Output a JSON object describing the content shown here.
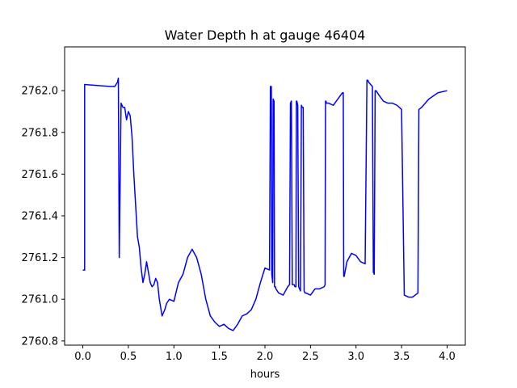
{
  "chart_data": {
    "type": "line",
    "title": "Water Depth h at gauge 46404",
    "xlabel": "hours",
    "ylabel": "",
    "xlim": [
      -0.2,
      4.2
    ],
    "ylim": [
      2760.78,
      2762.21
    ],
    "xticks": [
      0.0,
      0.5,
      1.0,
      1.5,
      2.0,
      2.5,
      3.0,
      3.5,
      4.0
    ],
    "xtick_labels": [
      "0.0",
      "0.5",
      "1.0",
      "1.5",
      "2.0",
      "2.5",
      "3.0",
      "3.5",
      "4.0"
    ],
    "yticks": [
      2760.8,
      2761.0,
      2761.2,
      2761.4,
      2761.6,
      2761.8,
      2762.0
    ],
    "ytick_labels": [
      "2760.8",
      "2761.0",
      "2761.2",
      "2761.4",
      "2761.6",
      "2761.8",
      "2762.0"
    ],
    "grid": false,
    "legend": "none",
    "series": [
      {
        "color": "#0000ff",
        "x": [
          0.0,
          0.02,
          0.02,
          0.3,
          0.35,
          0.38,
          0.39,
          0.4,
          0.42,
          0.44,
          0.46,
          0.48,
          0.5,
          0.52,
          0.54,
          0.56,
          0.6,
          0.62,
          0.64,
          0.66,
          0.68,
          0.7,
          0.74,
          0.76,
          0.78,
          0.8,
          0.82,
          0.84,
          0.87,
          0.9,
          0.92,
          0.95,
          1.0,
          1.05,
          1.1,
          1.15,
          1.2,
          1.25,
          1.3,
          1.35,
          1.4,
          1.45,
          1.5,
          1.55,
          1.6,
          1.65,
          1.7,
          1.75,
          1.8,
          1.85,
          1.9,
          1.95,
          2.0,
          2.05,
          2.06,
          2.07,
          2.075,
          2.085,
          2.09,
          2.1,
          2.105,
          2.115,
          2.12,
          2.15,
          2.2,
          2.25,
          2.27,
          2.28,
          2.29,
          2.3,
          2.31,
          2.32,
          2.33,
          2.34,
          2.345,
          2.35,
          2.36,
          2.37,
          2.38,
          2.39,
          2.4,
          2.41,
          2.42,
          2.43,
          2.44,
          2.45,
          2.5,
          2.55,
          2.6,
          2.65,
          2.66,
          2.665,
          2.67,
          2.675,
          2.7,
          2.75,
          2.8,
          2.85,
          2.86,
          2.865,
          2.87,
          2.9,
          2.95,
          3.0,
          3.05,
          3.1,
          3.12,
          3.13,
          3.14,
          3.16,
          3.18,
          3.19,
          3.2,
          3.21,
          3.22,
          3.25,
          3.3,
          3.35,
          3.4,
          3.45,
          3.5,
          3.53,
          3.53,
          3.58,
          3.62,
          3.65,
          3.68,
          3.69,
          3.72,
          3.8,
          3.9,
          4.0
        ],
        "y": [
          2761.14,
          2761.14,
          2762.03,
          2762.02,
          2762.02,
          2762.04,
          2762.06,
          2761.2,
          2761.94,
          2761.92,
          2761.92,
          2761.86,
          2761.9,
          2761.88,
          2761.78,
          2761.6,
          2761.3,
          2761.25,
          2761.15,
          2761.08,
          2761.12,
          2761.18,
          2761.08,
          2761.06,
          2761.07,
          2761.1,
          2761.08,
          2761.0,
          2760.92,
          2760.95,
          2760.98,
          2761.0,
          2760.99,
          2761.08,
          2761.12,
          2761.2,
          2761.24,
          2761.2,
          2761.12,
          2761.0,
          2760.92,
          2760.89,
          2760.87,
          2760.88,
          2760.86,
          2760.85,
          2760.88,
          2760.92,
          2760.93,
          2760.95,
          2761.0,
          2761.08,
          2761.15,
          2761.14,
          2762.02,
          2762.02,
          2761.12,
          2761.08,
          2761.96,
          2761.95,
          2761.06,
          2761.06,
          2761.05,
          2761.03,
          2761.02,
          2761.06,
          2761.07,
          2761.94,
          2761.95,
          2761.07,
          2761.07,
          2761.07,
          2761.06,
          2761.06,
          2761.95,
          2761.95,
          2761.93,
          2761.06,
          2761.05,
          2761.04,
          2761.93,
          2761.92,
          2761.92,
          2761.04,
          2761.03,
          2761.03,
          2761.02,
          2761.05,
          2761.05,
          2761.06,
          2761.07,
          2761.95,
          2761.95,
          2761.94,
          2761.94,
          2761.93,
          2761.96,
          2761.99,
          2761.99,
          2761.11,
          2761.11,
          2761.18,
          2761.22,
          2761.21,
          2761.18,
          2761.17,
          2762.05,
          2762.05,
          2762.04,
          2762.03,
          2762.02,
          2761.13,
          2761.12,
          2762.0,
          2762.0,
          2761.98,
          2761.95,
          2761.94,
          2761.94,
          2761.93,
          2761.91,
          2761.02,
          2761.02,
          2761.01,
          2761.01,
          2761.02,
          2761.03,
          2761.91,
          2761.92,
          2761.96,
          2761.99,
          2762.0
        ]
      }
    ]
  }
}
